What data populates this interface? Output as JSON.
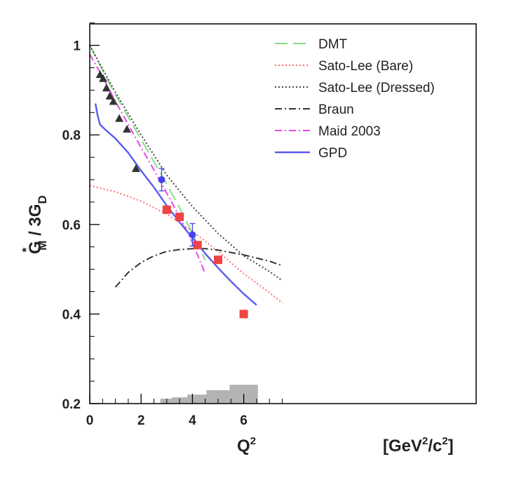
{
  "chart_data": {
    "type": "scatter",
    "xlabel_main": "Q",
    "xlabel_sup": "2",
    "xlabel_units_pre": "[GeV",
    "xlabel_units_sup1": "2",
    "xlabel_units_mid": "/c",
    "xlabel_units_sup2": "2",
    "xlabel_units_post": "]",
    "ylabel_G": "G",
    "ylabel_star": "*",
    "ylabel_M": "M",
    "ylabel_mid": " / 3G",
    "ylabel_D": "D",
    "xlim": [
      0,
      7.5
    ],
    "ylim": [
      0.2,
      1.05
    ],
    "xticks": [
      "0",
      "2",
      "4",
      "6"
    ],
    "yticks": [
      "0.2",
      "0.4",
      "0.6",
      "0.8",
      "1"
    ],
    "colors": {
      "DMT": "#88dd88",
      "SatoLeeBare": "#ff6f6f",
      "SatoLeeDressed": "#444444",
      "Braun": "#333333",
      "Maid2003": "#ee44ee",
      "GPD": "#5a5af0",
      "redMarkers": "#ee4444",
      "blueMarkers": "#4444ee",
      "triangles": "#333333",
      "bands": "#b3b3b3"
    },
    "series": [
      {
        "name": "DMT",
        "style": "dashed",
        "color": "#88dd88",
        "x": [
          0,
          0.5,
          1,
          1.5,
          2,
          2.5,
          3,
          3.5,
          4,
          4.5
        ],
        "y": [
          1.0,
          0.944,
          0.89,
          0.84,
          0.79,
          0.74,
          0.69,
          0.637,
          0.58,
          0.52
        ]
      },
      {
        "name": "Sato-Lee (Bare)",
        "style": "dotted",
        "color": "#ff6f6f",
        "x": [
          0,
          1,
          2,
          3,
          4,
          5,
          6,
          7,
          7.5
        ],
        "y": [
          0.687,
          0.673,
          0.652,
          0.623,
          0.585,
          0.54,
          0.49,
          0.448,
          0.425
        ]
      },
      {
        "name": "Sato-Lee (Dressed)",
        "style": "dotted",
        "color": "#444444",
        "x": [
          0,
          1,
          2,
          3,
          4,
          5,
          6,
          7,
          7.5
        ],
        "y": [
          1.0,
          0.895,
          0.8,
          0.71,
          0.64,
          0.58,
          0.53,
          0.495,
          0.475
        ]
      },
      {
        "name": "Braun",
        "style": "dashdot",
        "color": "#333333",
        "x": [
          1,
          1.5,
          2,
          2.5,
          3,
          3.5,
          4,
          4.5,
          5,
          6,
          7,
          7.5
        ],
        "y": [
          0.46,
          0.493,
          0.515,
          0.53,
          0.54,
          0.544,
          0.546,
          0.546,
          0.543,
          0.532,
          0.518,
          0.508
        ]
      },
      {
        "name": "Maid 2003",
        "style": "dashdot",
        "color": "#ee44ee",
        "x": [
          0,
          0.5,
          1,
          1.5,
          2,
          2.5,
          3,
          3.5,
          4,
          4.5
        ],
        "y": [
          0.98,
          0.93,
          0.875,
          0.823,
          0.772,
          0.722,
          0.67,
          0.617,
          0.56,
          0.49
        ]
      },
      {
        "name": "GPD",
        "style": "solid",
        "color": "#5a5af0",
        "x": [
          0.22,
          0.3,
          0.4,
          0.6,
          1,
          1.5,
          2,
          2.5,
          3,
          3.5,
          4,
          4.5,
          5,
          5.5,
          6,
          6.5
        ],
        "y": [
          0.87,
          0.845,
          0.823,
          0.812,
          0.792,
          0.76,
          0.72,
          0.683,
          0.642,
          0.605,
          0.57,
          0.535,
          0.503,
          0.473,
          0.445,
          0.42
        ]
      }
    ],
    "markers": {
      "triangles": {
        "x": [
          0.4,
          0.52,
          0.65,
          0.78,
          0.92,
          1.15,
          1.45,
          1.8
        ],
        "y": [
          0.935,
          0.926,
          0.905,
          0.887,
          0.875,
          0.837,
          0.813,
          0.725
        ]
      },
      "squares": {
        "x": [
          3.0,
          3.5,
          4.2,
          5.0,
          6.0
        ],
        "y": [
          0.633,
          0.617,
          0.554,
          0.521,
          0.4
        ]
      },
      "circles": {
        "x": [
          2.8,
          4.0
        ],
        "y": [
          0.7,
          0.577
        ],
        "err": [
          0.025,
          0.025
        ]
      }
    },
    "bands": [
      {
        "x0": 2.75,
        "x1": 3.2,
        "top": 0.211
      },
      {
        "x0": 3.2,
        "x1": 3.8,
        "top": 0.214
      },
      {
        "x0": 3.8,
        "x1": 4.55,
        "top": 0.22
      },
      {
        "x0": 4.55,
        "x1": 5.45,
        "top": 0.23
      },
      {
        "x0": 5.45,
        "x1": 6.55,
        "top": 0.242
      }
    ],
    "legend": [
      "DMT",
      "Sato-Lee (Bare)",
      "Sato-Lee (Dressed)",
      "Braun",
      "Maid 2003",
      "GPD"
    ],
    "legend_position": "top-right",
    "grid": false
  }
}
